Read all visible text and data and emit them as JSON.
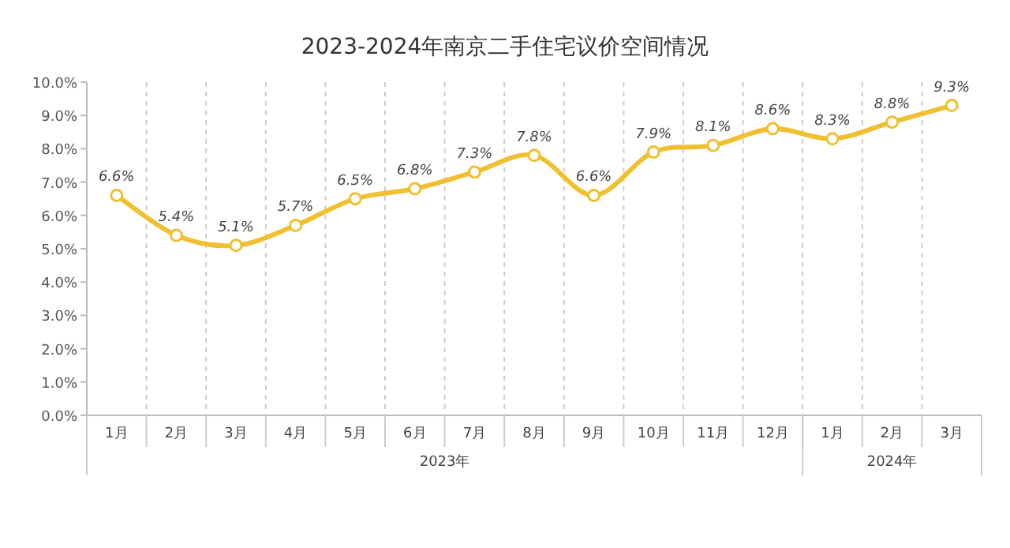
{
  "chart_data": {
    "type": "line",
    "title": "2023-2024年南京二手住宅议价空间情况",
    "categories": [
      "1月",
      "2月",
      "3月",
      "4月",
      "5月",
      "6月",
      "7月",
      "8月",
      "9月",
      "10月",
      "11月",
      "12月",
      "1月",
      "2月",
      "3月"
    ],
    "series": [
      {
        "color": "#f0c030",
        "values": [
          6.6,
          5.4,
          5.1,
          5.7,
          6.5,
          6.8,
          7.3,
          7.8,
          6.6,
          7.9,
          8.1,
          8.6,
          8.3,
          8.8,
          9.3
        ],
        "value_labels": [
          "6.6%",
          "5.4%",
          "5.1%",
          "5.7%",
          "6.5%",
          "6.8%",
          "7.3%",
          "7.8%",
          "6.6%",
          "7.9%",
          "8.1%",
          "8.6%",
          "8.3%",
          "8.8%",
          "9.3%"
        ]
      }
    ],
    "ylim": [
      0,
      10
    ],
    "yticks": [
      {
        "value": 0,
        "label": "0.0%"
      },
      {
        "value": 1,
        "label": "1.0%"
      },
      {
        "value": 2,
        "label": "2.0%"
      },
      {
        "value": 3,
        "label": "3.0%"
      },
      {
        "value": 4,
        "label": "4.0%"
      },
      {
        "value": 5,
        "label": "5.0%"
      },
      {
        "value": 6,
        "label": "6.0%"
      },
      {
        "value": 7,
        "label": "7.0%"
      },
      {
        "value": 8,
        "label": "8.0%"
      },
      {
        "value": 9,
        "label": "9.0%"
      },
      {
        "value": 10,
        "label": "10.0%"
      }
    ],
    "grid": "x",
    "marker": "circle",
    "line_style": "solid",
    "annotations": [
      "2023年",
      "2024年"
    ]
  }
}
